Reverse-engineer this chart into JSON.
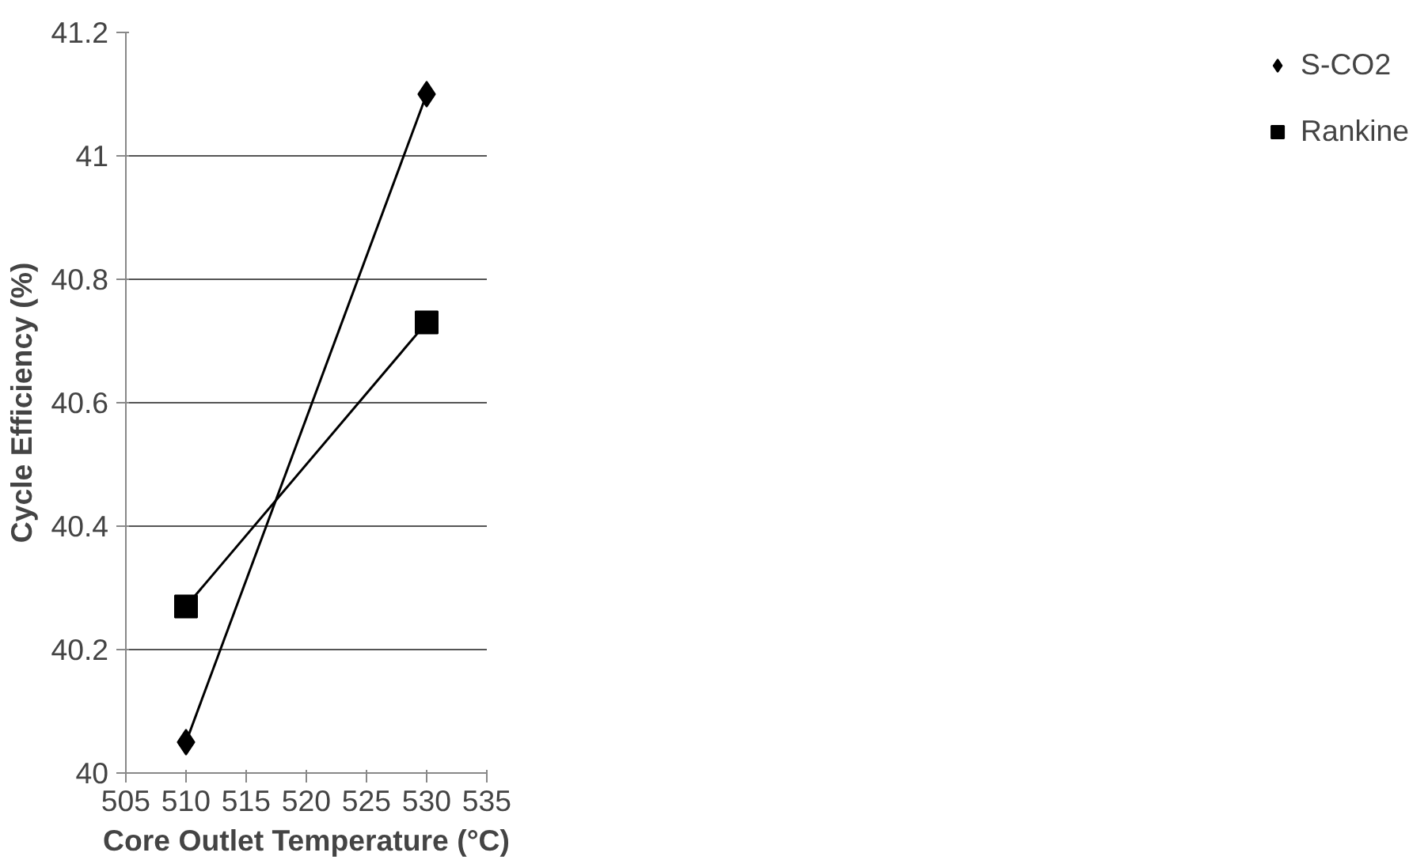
{
  "chart_data": {
    "type": "line",
    "xlabel": "Core Outlet Temperature (°C)",
    "ylabel": "Cycle Efficiency (%)",
    "x": [
      510,
      530
    ],
    "series": [
      {
        "name": "S-CO2",
        "color": "#000000",
        "values": [
          40.05,
          41.1
        ],
        "marker": "diamond"
      },
      {
        "name": "Rankine",
        "color": "#000000",
        "values": [
          40.27,
          40.73
        ],
        "marker": "square"
      }
    ],
    "xlim": [
      505,
      535
    ],
    "xticks": [
      505,
      510,
      515,
      520,
      525,
      530,
      535
    ],
    "ylim": [
      40,
      41.2
    ],
    "yticks": [
      40,
      40.2,
      40.4,
      40.6,
      40.8,
      41,
      41.2
    ],
    "grid": "y",
    "legend": "right",
    "line_style": "solid"
  }
}
